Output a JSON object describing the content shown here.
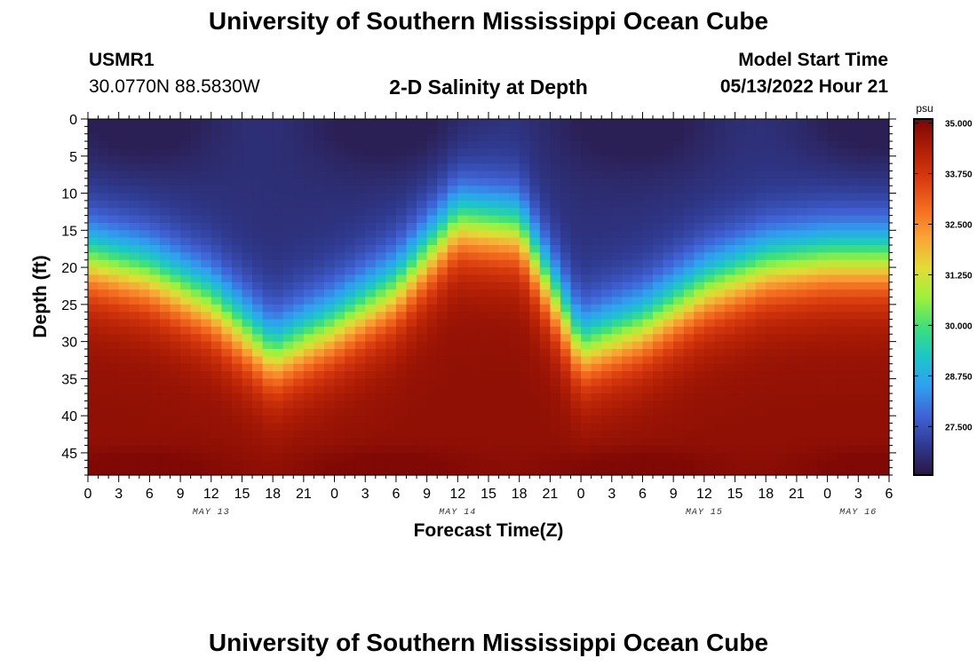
{
  "header": {
    "title": "University of Southern Mississippi Ocean Cube",
    "station_id": "USMR1",
    "station_coords": "30.0770N  88.5830W",
    "subtitle": "2-D Salinity at Depth",
    "model_start_label": "Model Start Time",
    "model_start_value": "05/13/2022 Hour 21"
  },
  "footer": {
    "title": "University of Southern Mississippi Ocean Cube"
  },
  "chart_data": {
    "type": "heatmap",
    "title": "2-D Salinity at Depth",
    "xlabel": "Forecast Time(Z)",
    "ylabel": "Depth (ft)",
    "x_tick_labels": [
      "0",
      "3",
      "6",
      "9",
      "12",
      "15",
      "18",
      "21",
      "0",
      "3",
      "6",
      "9",
      "12",
      "15",
      "18",
      "21",
      "0",
      "3",
      "6",
      "9",
      "12",
      "15",
      "18",
      "21",
      "0",
      "3",
      "6"
    ],
    "x_hours_range": [
      0,
      78
    ],
    "date_labels": [
      {
        "label": "MAY 13",
        "hour": 12
      },
      {
        "label": "MAY 14",
        "hour": 36
      },
      {
        "label": "MAY 15",
        "hour": 60
      },
      {
        "label": "MAY 16",
        "hour": 75
      }
    ],
    "y_ticks": [
      0,
      5,
      10,
      15,
      20,
      25,
      30,
      35,
      40,
      45
    ],
    "ylim": [
      0,
      48
    ],
    "y_inverted": true,
    "colorbar": {
      "unit": "psu",
      "range": [
        26.3,
        35.1
      ],
      "ticks": [
        "35.000",
        "33.750",
        "32.500",
        "31.250",
        "30.000",
        "28.750",
        "27.500"
      ],
      "colors": [
        "#2a1640",
        "#2f3a8f",
        "#3f63d6",
        "#2fa0f0",
        "#1cc6c8",
        "#3ee07a",
        "#9ef13b",
        "#e2dc36",
        "#f9a436",
        "#f36b1f",
        "#d83a0e",
        "#b01e05",
        "#7a0605"
      ]
    },
    "halocline_depth_ft": {
      "hours": [
        0,
        6,
        12,
        18,
        24,
        30,
        36,
        42,
        48,
        54,
        60,
        66,
        72,
        78
      ],
      "depth": [
        19,
        21,
        25,
        32,
        28,
        23,
        14,
        15,
        31,
        28,
        23,
        20,
        19,
        19
      ]
    },
    "value_range_psu": [
      26.5,
      35.0
    ]
  }
}
